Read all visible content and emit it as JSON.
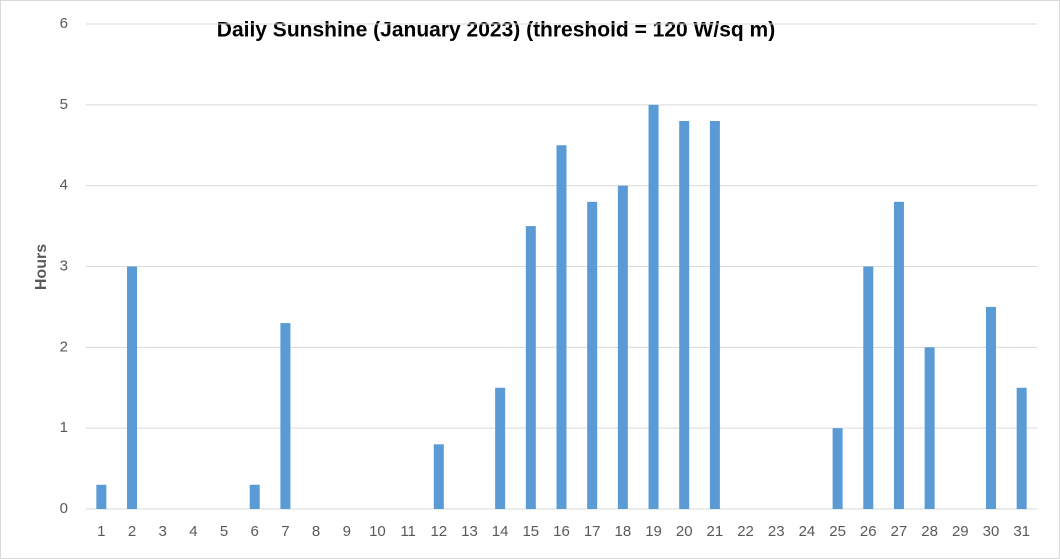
{
  "chart_data": {
    "type": "bar",
    "title": "Daily Sunshine (January 2023) (threshold = 120 W/sq m)",
    "y_label": "Hours",
    "categories": [
      "1",
      "2",
      "3",
      "4",
      "5",
      "6",
      "7",
      "8",
      "9",
      "10",
      "11",
      "12",
      "13",
      "14",
      "15",
      "16",
      "17",
      "18",
      "19",
      "20",
      "21",
      "22",
      "23",
      "24",
      "25",
      "26",
      "27",
      "28",
      "29",
      "30",
      "31"
    ],
    "values": [
      0.3,
      3,
      0,
      0,
      0,
      0.3,
      2.3,
      0,
      0,
      0,
      0,
      0.8,
      0,
      1.5,
      3.5,
      4.5,
      3.8,
      4,
      5,
      4.8,
      4.8,
      0,
      0,
      0,
      1,
      3,
      3.8,
      2,
      0,
      2.5,
      1.5
    ],
    "color": "#5b9bd5",
    "ylim": [
      0,
      6
    ],
    "yticks": [
      0,
      1,
      2,
      3,
      4,
      5,
      6
    ],
    "grid": true
  }
}
